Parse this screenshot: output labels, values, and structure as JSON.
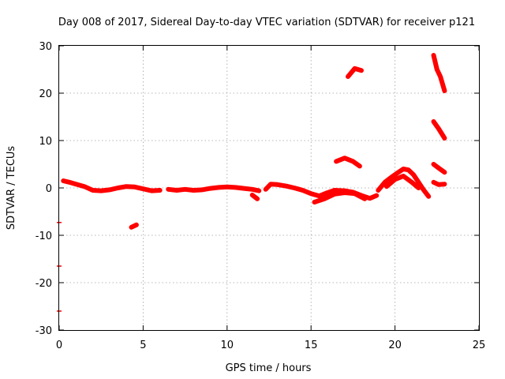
{
  "chart_data": {
    "type": "scatter",
    "title": "Day 008 of 2017, Sidereal Day-to-day VTEC variation (SDTVAR) for receiver p121",
    "xlabel": "GPS time / hours",
    "ylabel": "SDTVAR / TECUs",
    "xlim": [
      0,
      25
    ],
    "ylim": [
      -30,
      30
    ],
    "xticks": [
      0,
      5,
      10,
      15,
      20,
      25
    ],
    "yticks": [
      -30,
      -20,
      -10,
      0,
      10,
      20,
      30
    ],
    "xtick_labels": [
      "0",
      "5",
      "10",
      "15",
      "20",
      "25"
    ],
    "ytick_labels": [
      "-30",
      "-20",
      "-10",
      "0",
      "10",
      "20",
      "30"
    ],
    "grid": true,
    "series_color": "#ff0000",
    "series": [
      {
        "name": "segment-1",
        "points": [
          [
            0.25,
            1.5
          ],
          [
            0.6,
            1.2
          ],
          [
            1.0,
            0.8
          ],
          [
            1.5,
            0.3
          ],
          [
            2.0,
            -0.5
          ],
          [
            2.5,
            -0.6
          ],
          [
            3.0,
            -0.4
          ],
          [
            3.5,
            0.0
          ],
          [
            4.0,
            0.3
          ],
          [
            4.5,
            0.2
          ],
          [
            5.0,
            -0.2
          ],
          [
            5.5,
            -0.6
          ],
          [
            6.0,
            -0.5
          ]
        ]
      },
      {
        "name": "segment-2",
        "points": [
          [
            6.5,
            -0.3
          ],
          [
            7.0,
            -0.5
          ],
          [
            7.5,
            -0.3
          ],
          [
            8.0,
            -0.5
          ],
          [
            8.5,
            -0.4
          ],
          [
            9.0,
            -0.1
          ],
          [
            9.5,
            0.1
          ],
          [
            10.0,
            0.2
          ],
          [
            10.5,
            0.1
          ],
          [
            11.0,
            -0.1
          ],
          [
            11.5,
            -0.3
          ],
          [
            11.9,
            -0.6
          ]
        ]
      },
      {
        "name": "segment-3",
        "points": [
          [
            11.5,
            -1.5
          ],
          [
            11.8,
            -2.3
          ]
        ]
      },
      {
        "name": "segment-4",
        "points": [
          [
            12.3,
            -0.3
          ],
          [
            12.6,
            0.8
          ],
          [
            13.0,
            0.7
          ],
          [
            13.5,
            0.4
          ],
          [
            14.0,
            0.0
          ],
          [
            14.5,
            -0.5
          ],
          [
            15.0,
            -1.2
          ],
          [
            15.5,
            -1.7
          ],
          [
            15.9,
            -1.1
          ],
          [
            16.4,
            -0.5
          ],
          [
            17.0,
            -0.6
          ],
          [
            17.5,
            -0.9
          ],
          [
            18.0,
            -1.6
          ],
          [
            18.5,
            -2.2
          ],
          [
            18.9,
            -1.6
          ]
        ]
      },
      {
        "name": "segment-5",
        "points": [
          [
            15.2,
            -3.0
          ],
          [
            15.8,
            -2.3
          ],
          [
            16.4,
            -1.3
          ],
          [
            17.0,
            -1.0
          ],
          [
            17.6,
            -1.2
          ],
          [
            18.2,
            -2.3
          ]
        ]
      },
      {
        "name": "segment-6",
        "points": [
          [
            19.0,
            -0.5
          ],
          [
            19.4,
            1.2
          ],
          [
            19.8,
            2.3
          ],
          [
            20.2,
            3.3
          ],
          [
            20.5,
            4.0
          ],
          [
            20.8,
            3.8
          ],
          [
            21.1,
            2.8
          ],
          [
            21.4,
            1.2
          ],
          [
            21.7,
            -0.4
          ],
          [
            22.0,
            -1.8
          ]
        ]
      },
      {
        "name": "segment-7",
        "points": [
          [
            19.5,
            0.3
          ],
          [
            20.0,
            1.8
          ],
          [
            20.5,
            2.5
          ],
          [
            21.0,
            1.2
          ],
          [
            21.4,
            0.0
          ]
        ]
      },
      {
        "name": "segment-8",
        "points": [
          [
            16.5,
            5.6
          ],
          [
            17.0,
            6.3
          ],
          [
            17.5,
            5.6
          ],
          [
            17.9,
            4.6
          ]
        ]
      },
      {
        "name": "segment-9",
        "points": [
          [
            17.2,
            23.5
          ],
          [
            17.6,
            25.2
          ],
          [
            18.0,
            24.8
          ]
        ]
      },
      {
        "name": "segment-10",
        "points": [
          [
            22.3,
            28.0
          ],
          [
            22.5,
            25.0
          ],
          [
            22.7,
            23.5
          ],
          [
            22.95,
            20.5
          ]
        ]
      },
      {
        "name": "segment-11",
        "points": [
          [
            22.3,
            14.0
          ],
          [
            22.6,
            12.5
          ],
          [
            22.95,
            10.5
          ]
        ]
      },
      {
        "name": "segment-12",
        "points": [
          [
            22.3,
            5.0
          ],
          [
            22.6,
            4.2
          ],
          [
            22.95,
            3.3
          ]
        ]
      },
      {
        "name": "segment-13",
        "points": [
          [
            22.3,
            1.2
          ],
          [
            22.6,
            0.7
          ],
          [
            22.95,
            0.8
          ]
        ]
      },
      {
        "name": "segment-14",
        "points": [
          [
            4.3,
            -8.3
          ],
          [
            4.6,
            -7.8
          ]
        ]
      },
      {
        "name": "segment-15",
        "points": [
          [
            0.0,
            -7.3
          ],
          [
            0.0,
            -16.5
          ],
          [
            0.0,
            -26.0
          ]
        ]
      }
    ]
  }
}
